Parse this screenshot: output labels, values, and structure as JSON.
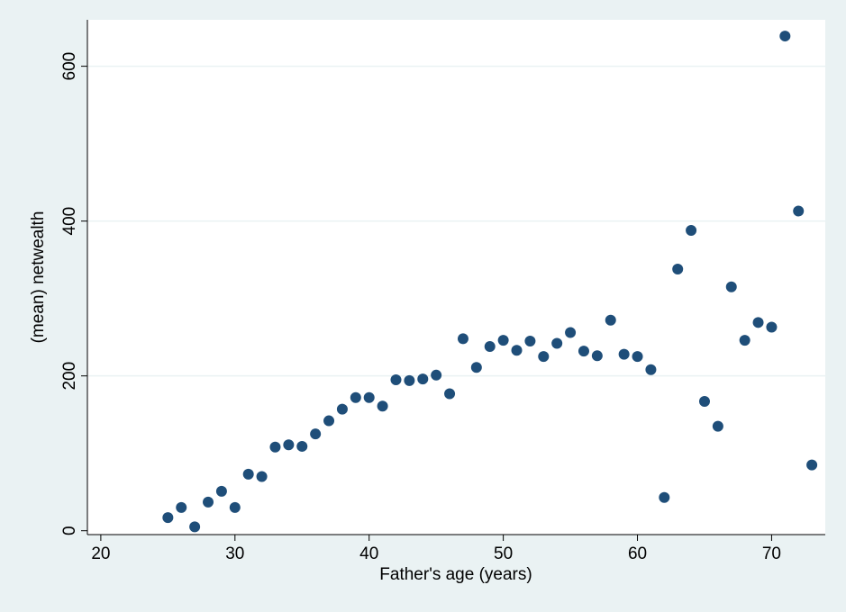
{
  "chart_data": {
    "type": "scatter",
    "title": "",
    "xlabel": "Father's age (years)",
    "ylabel": "(mean) netwealth",
    "xlim": [
      19,
      74
    ],
    "ylim": [
      -5,
      660
    ],
    "xticks": [
      20,
      30,
      40,
      50,
      60,
      70
    ],
    "yticks": [
      0,
      200,
      400,
      600
    ],
    "grid": "horizontal",
    "colors": {
      "background": "#eaf2f3",
      "plot_area": "#ffffff",
      "gridline": "#eaf2f3",
      "marker": "#1f4e79",
      "axis": "#000000"
    },
    "series": [
      {
        "x": [
          25,
          26,
          27,
          28,
          29,
          30,
          31,
          32,
          33,
          34,
          35,
          36,
          37,
          38,
          39,
          40,
          41,
          42,
          43,
          44,
          45,
          46,
          47,
          48,
          49,
          50,
          51,
          52,
          53,
          54,
          55,
          56,
          57,
          58,
          59,
          60,
          61,
          62,
          63,
          64,
          65,
          66,
          67,
          68,
          69,
          70,
          71,
          72,
          73
        ],
        "y": [
          17,
          30,
          5,
          37,
          51,
          30,
          73,
          70,
          108,
          111,
          109,
          125,
          142,
          157,
          172,
          172,
          161,
          195,
          194,
          196,
          201,
          177,
          248,
          211,
          238,
          246,
          233,
          245,
          225,
          242,
          256,
          232,
          226,
          272,
          228,
          225,
          208,
          43,
          338,
          388,
          167,
          135,
          315,
          246,
          269,
          263,
          639,
          413,
          85
        ]
      }
    ]
  }
}
